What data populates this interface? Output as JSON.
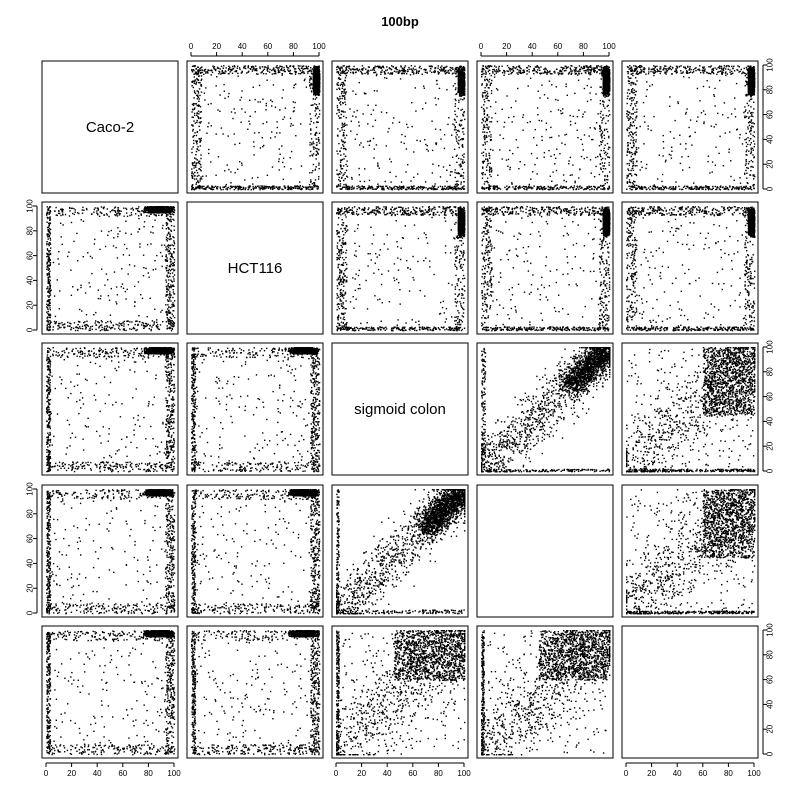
{
  "chart_data": {
    "type": "scatter",
    "subtype": "pairs-matrix",
    "title": "100bp",
    "variables": [
      "Caco-2",
      "HCT116",
      "sigmoid colon",
      "",
      ""
    ],
    "axis_range": [
      0,
      100
    ],
    "ticks": [
      0,
      20,
      40,
      60,
      80,
      100
    ],
    "tick_labels": [
      "0",
      "20",
      "40",
      "60",
      "80",
      "100"
    ],
    "grid": false,
    "legend": "none",
    "point_color": "#000000",
    "panels_present": [
      {
        "row": 0,
        "col": 1
      },
      {
        "row": 0,
        "col": 2
      },
      {
        "row": 0,
        "col": 3
      },
      {
        "row": 0,
        "col": 4
      },
      {
        "row": 1,
        "col": 0
      },
      {
        "row": 1,
        "col": 2
      },
      {
        "row": 1,
        "col": 3
      },
      {
        "row": 1,
        "col": 4
      },
      {
        "row": 2,
        "col": 0
      },
      {
        "row": 2,
        "col": 1
      },
      {
        "row": 2,
        "col": 3
      },
      {
        "row": 2,
        "col": 4
      },
      {
        "row": 3,
        "col": 0
      },
      {
        "row": 3,
        "col": 1
      },
      {
        "row": 3,
        "col": 2
      },
      {
        "row": 3,
        "col": 4
      },
      {
        "row": 4,
        "col": 0
      },
      {
        "row": 4,
        "col": 1
      },
      {
        "row": 4,
        "col": 2
      },
      {
        "row": 4,
        "col": 3
      }
    ],
    "pattern_notes": "Values are methylation-like percentages (0-100). Pairs among Caco-2 and HCT116 and vs. other samples cluster near edges (0 or ~100), tissue-vs-tissue pairs show strong positive correlation with dense mass near (80-100, 80-100)."
  }
}
